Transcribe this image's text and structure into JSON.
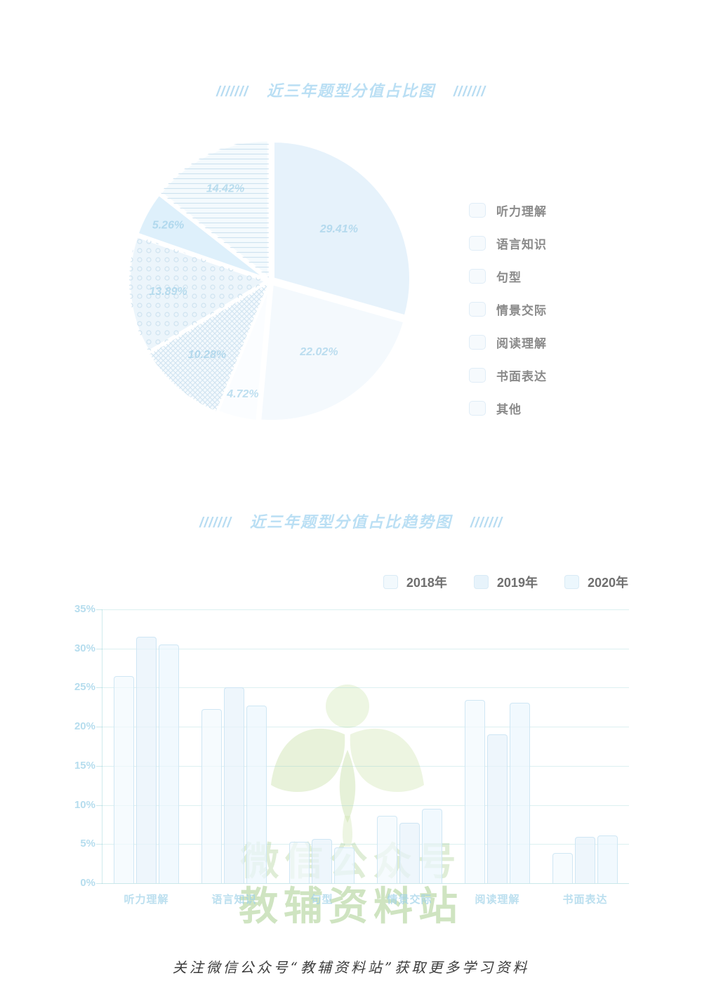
{
  "decor": {
    "slashes": "///////"
  },
  "chart_data": [
    {
      "type": "pie",
      "title": "近三年题型分值占比图",
      "labels": [
        "听力理解",
        "语言知识",
        "句型",
        "情景交际",
        "阅读理解",
        "书面表达",
        "其他"
      ],
      "values": [
        29.41,
        22.02,
        4.72,
        10.28,
        13.89,
        5.26,
        14.42
      ],
      "display_labels": [
        "29.41%",
        "22.02%",
        "4.72%",
        "10.28%",
        "13.89%",
        "5.26%",
        "14.42%"
      ],
      "unit": "%",
      "legend_position": "right",
      "slice_styles": [
        "solid-light",
        "solid-pale",
        "solid-white",
        "crosshatch",
        "dots",
        "solid-blue",
        "hlines"
      ]
    },
    {
      "type": "bar",
      "title": "近三年题型分值占比趋势图",
      "categories": [
        "听力理解",
        "语言知识",
        "句型",
        "情景交际",
        "阅读理解",
        "书面表达"
      ],
      "series": [
        {
          "name": "2018年",
          "values": [
            26.5,
            22.3,
            5.3,
            8.6,
            23.4,
            3.9
          ]
        },
        {
          "name": "2019年",
          "values": [
            31.5,
            25.0,
            5.7,
            7.7,
            19.0,
            5.9
          ]
        },
        {
          "name": "2020年",
          "values": [
            30.5,
            22.7,
            4.6,
            9.5,
            23.1,
            6.1
          ]
        }
      ],
      "ylabel_ticks": [
        "35%",
        "30%",
        "25%",
        "20%",
        "15%",
        "10%",
        "5%",
        "0%"
      ],
      "ylim": [
        0,
        35
      ],
      "grid": true,
      "legend_position": "top-right"
    }
  ],
  "palette": {
    "title_color": "#b2dbf3",
    "pie_fills": [
      "#e6f2fb",
      "#f4f9fd",
      "#fbfdff",
      "#f3f9fd",
      "#ecf5fb",
      "#def0fb",
      "#f4fafd"
    ],
    "pattern_line": "#cfe3f0",
    "pie_label_color": "#8cc6e4",
    "grid_color": "#8ccdd2",
    "bar_2018": "#f2f9fd",
    "bar_2019": "#e7f3fb",
    "bar_2020": "#ecf7fd",
    "watermark_green": "#94c376"
  },
  "watermark": {
    "logo": "sprout-logo",
    "line1": "微信公众号",
    "line2": "教辅资料站"
  },
  "footer": {
    "text": "关注微信公众号“教辅资料站”获取更多学习资料"
  }
}
